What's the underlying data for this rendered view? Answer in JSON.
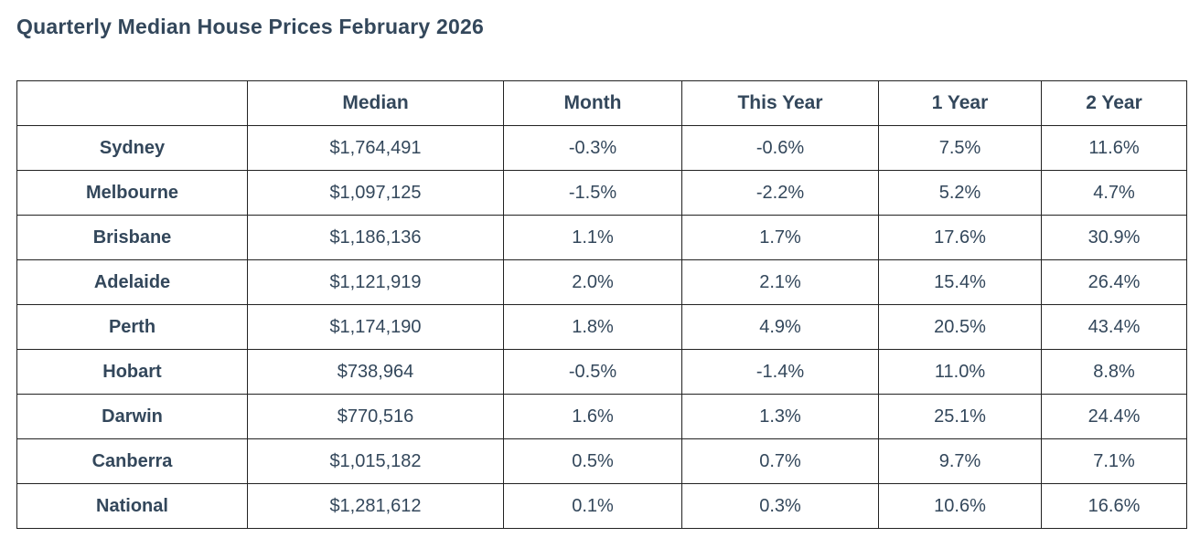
{
  "title": "Quarterly Median House Prices February 2026",
  "colors": {
    "text": "#33475b",
    "border": "#222222",
    "background": "#ffffff"
  },
  "chart_data": {
    "type": "table",
    "title": "Quarterly Median House Prices February 2026",
    "columns": [
      "",
      "Median",
      "Month",
      "This Year",
      "1 Year",
      "2 Year"
    ],
    "rows": [
      [
        "Sydney",
        "$1,764,491",
        "-0.3%",
        "-0.6%",
        "7.5%",
        "11.6%"
      ],
      [
        "Melbourne",
        "$1,097,125",
        "-1.5%",
        "-2.2%",
        "5.2%",
        "4.7%"
      ],
      [
        "Brisbane",
        "$1,186,136",
        "1.1%",
        "1.7%",
        "17.6%",
        "30.9%"
      ],
      [
        "Adelaide",
        "$1,121,919",
        "2.0%",
        "2.1%",
        "15.4%",
        "26.4%"
      ],
      [
        "Perth",
        "$1,174,190",
        "1.8%",
        "4.9%",
        "20.5%",
        "43.4%"
      ],
      [
        "Hobart",
        "$738,964",
        "-0.5%",
        "-1.4%",
        "11.0%",
        "8.8%"
      ],
      [
        "Darwin",
        "$770,516",
        "1.6%",
        "1.3%",
        "25.1%",
        "24.4%"
      ],
      [
        "Canberra",
        "$1,015,182",
        "0.5%",
        "0.7%",
        "9.7%",
        "7.1%"
      ],
      [
        "National",
        "$1,281,612",
        "0.1%",
        "0.3%",
        "10.6%",
        "16.6%"
      ]
    ]
  }
}
